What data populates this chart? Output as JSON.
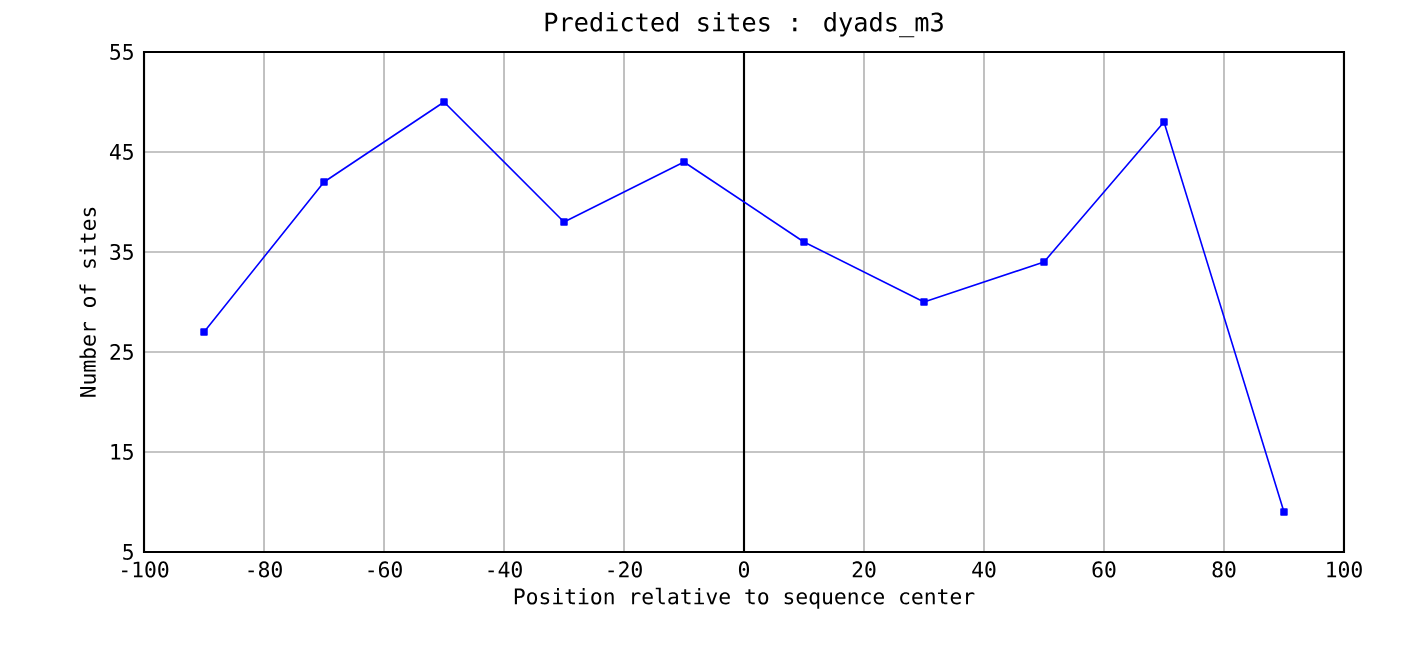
{
  "chart_data": {
    "type": "line",
    "title": "Predicted sites : dyads_m3",
    "xlabel": "Position relative to sequence center",
    "ylabel": "Number of sites",
    "x": [
      -90,
      -70,
      -50,
      -30,
      -10,
      10,
      30,
      50,
      70,
      90
    ],
    "series": [
      {
        "color": "#0000ff",
        "values": [
          27,
          42,
          50,
          38,
          44,
          36,
          30,
          34,
          48,
          9
        ]
      }
    ],
    "xlim": [
      -100,
      100
    ],
    "xticks": [
      -100,
      -80,
      -60,
      -40,
      -20,
      0,
      20,
      40,
      60,
      80,
      100
    ],
    "ylim": [
      5,
      55
    ],
    "yticks": [
      5,
      15,
      25,
      35,
      45,
      55
    ],
    "grid": true,
    "marker": "square",
    "line_style": "solid",
    "ref_lines": [
      {
        "axis": "x",
        "value": 0,
        "color": "#000000"
      }
    ]
  }
}
